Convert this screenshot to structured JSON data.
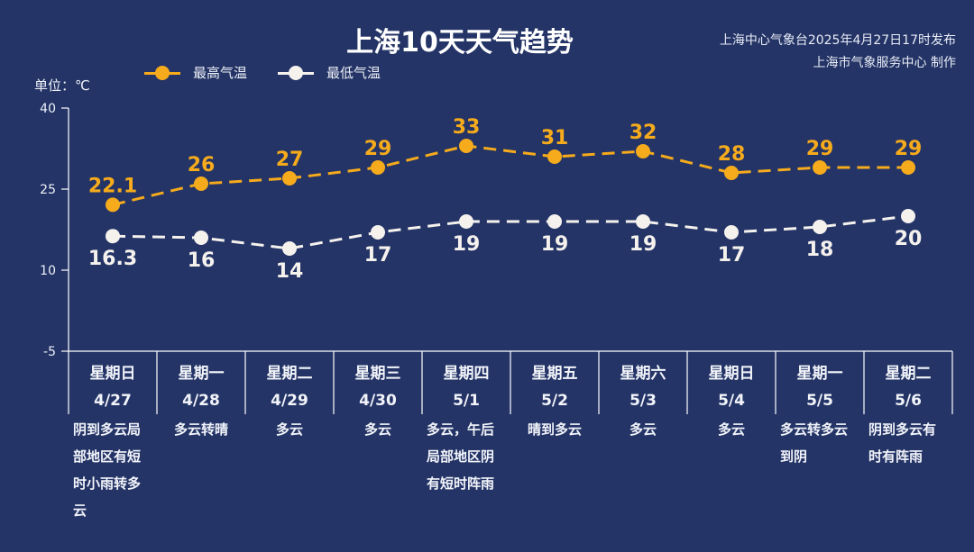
{
  "header": {
    "title": "上海10天天气趋势",
    "issuer_line1": "上海中心气象台2025年4月27日17时发布",
    "issuer_line2": "上海市气象服务中心 制作"
  },
  "legend": {
    "high_label": "最高气温",
    "low_label": "最低气温"
  },
  "unit_label": "单位：℃",
  "colors": {
    "background": "#243466",
    "high": "#f6ab1c",
    "low": "#f5f2ee",
    "axis": "#ffffff"
  },
  "days": [
    {
      "weekday": "星期日",
      "date": "4/27",
      "weather": "阴到多云局部地区有短时小雨转多云",
      "weather_lines": [
        "阴到多云局",
        "部地区有短",
        "时小雨转多",
        "云"
      ],
      "align": "left"
    },
    {
      "weekday": "星期一",
      "date": "4/28",
      "weather": "多云转晴",
      "weather_lines": [
        "多云转晴"
      ],
      "align": "center"
    },
    {
      "weekday": "星期二",
      "date": "4/29",
      "weather": "多云",
      "weather_lines": [
        "多云"
      ],
      "align": "center"
    },
    {
      "weekday": "星期三",
      "date": "4/30",
      "weather": "多云",
      "weather_lines": [
        "多云"
      ],
      "align": "center"
    },
    {
      "weekday": "星期四",
      "date": "5/1",
      "weather": "多云，午后局部地区阴有短时阵雨",
      "weather_lines": [
        "多云，午后",
        "局部地区阴",
        "有短时阵雨"
      ],
      "align": "left"
    },
    {
      "weekday": "星期五",
      "date": "5/2",
      "weather": "晴到多云",
      "weather_lines": [
        "晴到多云"
      ],
      "align": "center"
    },
    {
      "weekday": "星期六",
      "date": "5/3",
      "weather": "多云",
      "weather_lines": [
        "多云"
      ],
      "align": "center"
    },
    {
      "weekday": "星期日",
      "date": "5/4",
      "weather": "多云",
      "weather_lines": [
        "多云"
      ],
      "align": "center"
    },
    {
      "weekday": "星期一",
      "date": "5/5",
      "weather": "多云转多云到阴",
      "weather_lines": [
        "多云转多云",
        "到阴"
      ],
      "align": "left"
    },
    {
      "weekday": "星期二",
      "date": "5/6",
      "weather": "阴到多云有时有阵雨",
      "weather_lines": [
        "阴到多云有",
        "时有阵雨"
      ],
      "align": "left"
    }
  ],
  "chart_data": {
    "type": "line",
    "title": "上海10天天气趋势",
    "categories": [
      "星期日 4/27",
      "星期一 4/28",
      "星期二 4/29",
      "星期三 4/30",
      "星期四 5/1",
      "星期五 5/2",
      "星期六 5/3",
      "星期日 5/4",
      "星期一 5/5",
      "星期二 5/6"
    ],
    "series": [
      {
        "name": "最高气温",
        "color": "#f6ab1c",
        "line_style": "dashed",
        "values": [
          22.1,
          26,
          27,
          29,
          33,
          31,
          32,
          28,
          29,
          29
        ],
        "labels_position": "above"
      },
      {
        "name": "最低气温",
        "color": "#f5f2ee",
        "line_style": "dashed",
        "values": [
          16.3,
          16,
          14,
          17,
          19,
          19,
          19,
          17,
          18,
          20
        ],
        "labels_position": "below"
      }
    ],
    "xlabel": "",
    "ylabel": "单位：℃",
    "ylim": [
      -5,
      40
    ],
    "yticks": [
      40,
      25,
      10,
      -5
    ],
    "grid": false,
    "legend_position": "top-left"
  }
}
